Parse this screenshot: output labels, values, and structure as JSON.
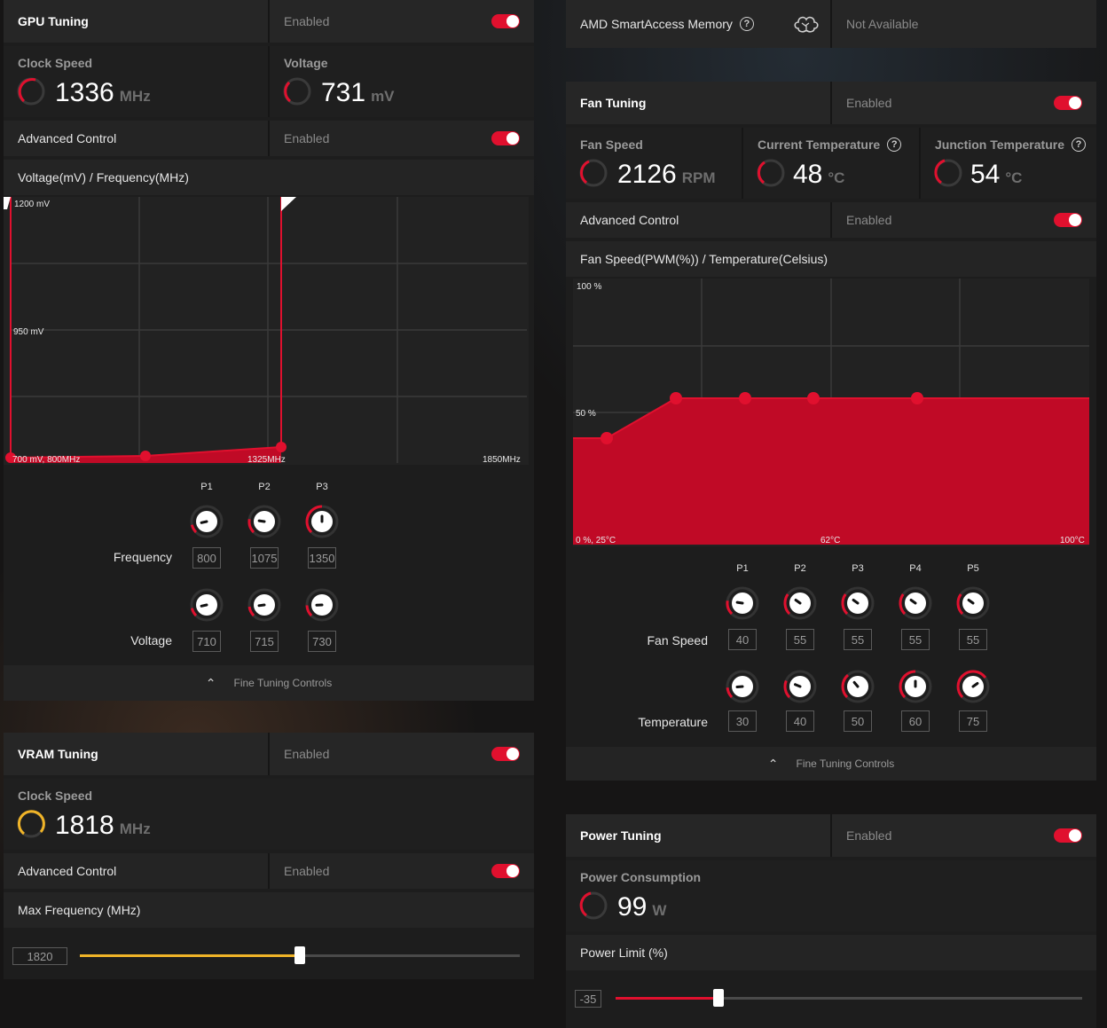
{
  "colors": {
    "accent": "#e0102e",
    "vram_accent": "#f0b428",
    "fill": "#c00a26"
  },
  "gpu_tuning": {
    "title": "GPU Tuning",
    "status": "Enabled",
    "clock_label": "Clock Speed",
    "clock_value": "1336",
    "clock_unit": "MHz",
    "voltage_label": "Voltage",
    "voltage_value": "731",
    "voltage_unit": "mV",
    "advanced_label": "Advanced Control",
    "advanced_status": "Enabled",
    "curve_title": "Voltage(mV) / Frequency(MHz)",
    "chart": {
      "y_top": "1200 mV",
      "y_mid": "950 mV",
      "x_start": "700 mV, 800MHz",
      "x_mid": "1325MHz",
      "x_end": "1850MHz"
    },
    "points": [
      "P1",
      "P2",
      "P3"
    ],
    "freq_label": "Frequency",
    "freq_values": [
      "800",
      "1075",
      "1350"
    ],
    "volt_label": "Voltage",
    "volt_values": [
      "710",
      "715",
      "730"
    ],
    "fine_label": "Fine Tuning Controls"
  },
  "vram_tuning": {
    "title": "VRAM Tuning",
    "status": "Enabled",
    "clock_label": "Clock Speed",
    "clock_value": "1818",
    "clock_unit": "MHz",
    "advanced_label": "Advanced Control",
    "advanced_status": "Enabled",
    "maxfreq_label": "Max Frequency (MHz)",
    "maxfreq_value": "1820",
    "maxfreq_fraction": 0.5
  },
  "smart_access": {
    "label": "AMD SmartAccess Memory",
    "status": "Not Available",
    "help_icon": "help-circle-icon",
    "brain_icon": "brain-icon"
  },
  "fan_tuning": {
    "title": "Fan Tuning",
    "status": "Enabled",
    "fan_label": "Fan Speed",
    "fan_value": "2126",
    "fan_unit": "RPM",
    "temp_label": "Current Temperature",
    "temp_value": "48",
    "temp_unit": "°C",
    "junc_label": "Junction Temperature",
    "junc_value": "54",
    "junc_unit": "°C",
    "advanced_label": "Advanced Control",
    "advanced_status": "Enabled",
    "curve_title": "Fan Speed(PWM(%)) / Temperature(Celsius)",
    "chart": {
      "y_top": "100 %",
      "y_mid": "50 %",
      "x_start": "0 %, 25°C",
      "x_mid": "62°C",
      "x_end": "100°C"
    },
    "points": [
      "P1",
      "P2",
      "P3",
      "P4",
      "P5"
    ],
    "speed_label": "Fan Speed",
    "speed_values": [
      "40",
      "55",
      "55",
      "55",
      "55"
    ],
    "temp_row_label": "Temperature",
    "temp_values": [
      "30",
      "40",
      "50",
      "60",
      "75"
    ],
    "fine_label": "Fine Tuning Controls"
  },
  "power_tuning": {
    "title": "Power Tuning",
    "status": "Enabled",
    "consumption_label": "Power Consumption",
    "consumption_value": "99",
    "consumption_unit": "W",
    "limit_label": "Power Limit (%)",
    "limit_value": "-35",
    "limit_fraction": 0.22
  }
}
